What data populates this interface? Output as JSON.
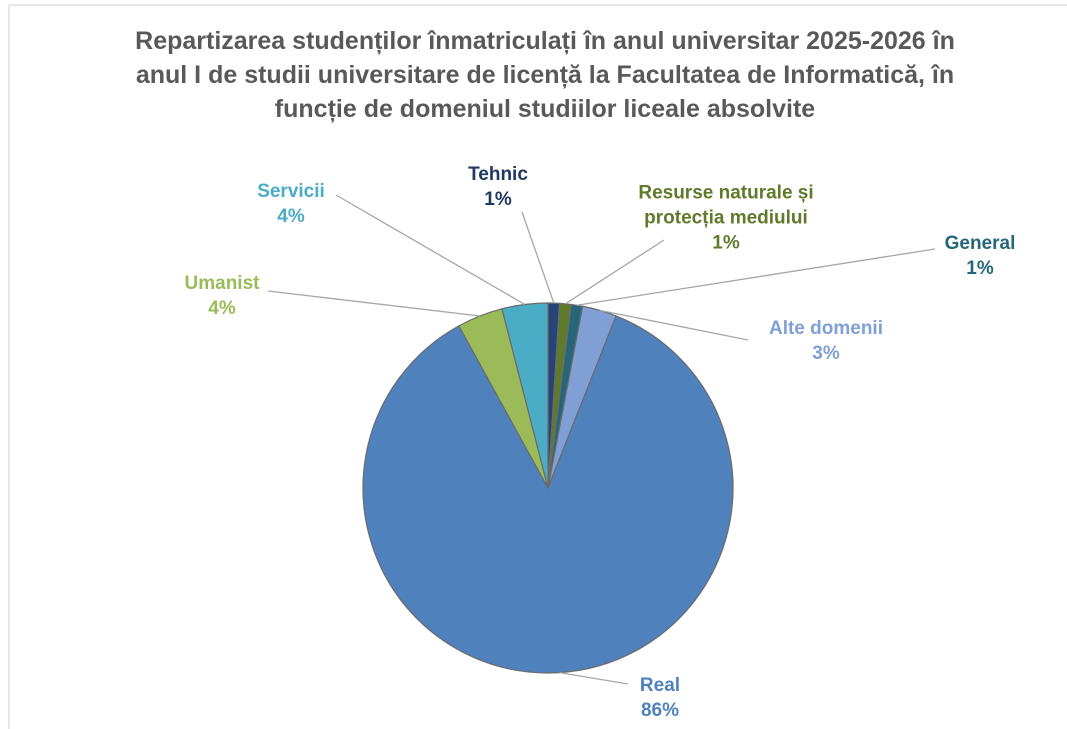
{
  "chart_data": {
    "type": "pie",
    "title": "Repartizarea studenților înmatriculați în anul universitar 2025-2026 în anul I de studii universitare de licență la Facultatea de Informatică, în funcție de domeniul studiilor liceale absolvite",
    "categories": [
      "Tehnic",
      "Resurse naturale și protecția mediului",
      "General",
      "Alte domenii",
      "Real",
      "Umanist",
      "Servicii"
    ],
    "values": [
      1,
      1,
      1,
      3,
      86,
      4,
      4
    ],
    "value_labels": [
      "1%",
      "1%",
      "1%",
      "3%",
      "86%",
      "4%",
      "4%"
    ],
    "colors": [
      "#264478",
      "#5f7a2a",
      "#26667a",
      "#7f9fd5",
      "#4f81bd",
      "#9bbb59",
      "#4bacc6"
    ],
    "label_colors": [
      "#203864",
      "#5f7a2a",
      "#26667a",
      "#7f9fd5",
      "#4f81bd",
      "#9bbb59",
      "#4bacc6"
    ]
  }
}
